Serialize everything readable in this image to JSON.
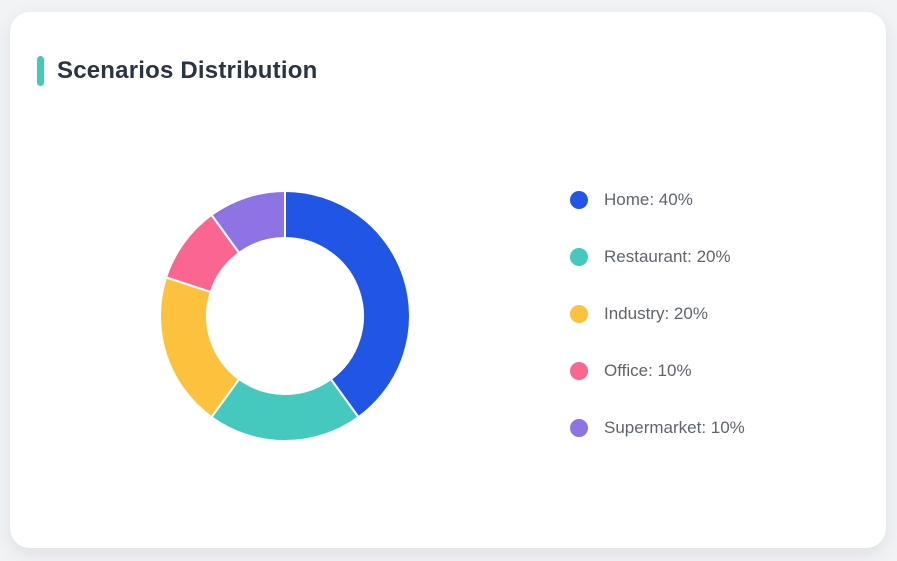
{
  "page": {
    "background": "#f1f3f5"
  },
  "card": {
    "title": "Scenarios Distribution",
    "accent_color": "#41c9b9",
    "title_color": "#2b3445",
    "background": "#ffffff"
  },
  "chart_data": {
    "type": "pie",
    "title": "Scenarios Distribution",
    "donut": true,
    "start_angle_deg": 0,
    "direction": "clockwise",
    "legend_position": "right",
    "unit": "%",
    "categories": [
      "Home",
      "Restaurant",
      "Industry",
      "Office",
      "Supermarket"
    ],
    "values": [
      40,
      20,
      20,
      10,
      10
    ],
    "colors": [
      "#2155e5",
      "#45c8be",
      "#fdc23d",
      "#fa6690",
      "#8d73e3"
    ],
    "segment_border_color": "#ffffff",
    "legend_text_color": "#5e6570",
    "legend": [
      {
        "text": "Home: 40%",
        "color": "#2155e5"
      },
      {
        "text": "Restaurant: 20%",
        "color": "#45c8be"
      },
      {
        "text": "Industry: 20%",
        "color": "#fdc23d"
      },
      {
        "text": "Office: 10%",
        "color": "#fa6690"
      },
      {
        "text": "Supermarket: 10%",
        "color": "#8d73e3"
      }
    ]
  }
}
